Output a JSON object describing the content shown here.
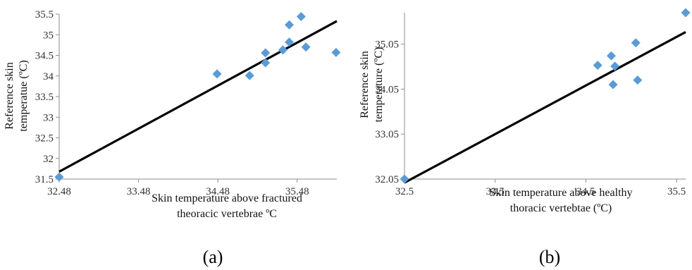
{
  "chart_data": [
    {
      "type": "scatter",
      "panel_label": "(a)",
      "xlabel_lines": [
        "Skin temperature above fractured",
        "theoracic vertebrae ºC"
      ],
      "ylabel_lines": [
        "Reference skin",
        "temperatue (ºC)"
      ],
      "xlim": [
        32.48,
        35.98
      ],
      "ylim": [
        31.5,
        35.5
      ],
      "xticks": [
        "32.48",
        "33.48",
        "34.48",
        "35.48"
      ],
      "xtick_values": [
        32.48,
        33.48,
        34.48,
        35.48
      ],
      "yticks": [
        "31.5",
        "32",
        "32.5",
        "33",
        "33.5",
        "34",
        "34.5",
        "35",
        "35.5"
      ],
      "ytick_values": [
        31.5,
        32,
        32.5,
        33,
        33.5,
        34,
        34.5,
        35,
        35.5
      ],
      "grid": false,
      "points": [
        {
          "x": 32.48,
          "y": 31.55
        },
        {
          "x": 34.47,
          "y": 34.05
        },
        {
          "x": 34.88,
          "y": 34.01
        },
        {
          "x": 35.08,
          "y": 34.56
        },
        {
          "x": 35.08,
          "y": 34.32
        },
        {
          "x": 35.3,
          "y": 34.63
        },
        {
          "x": 35.38,
          "y": 34.82
        },
        {
          "x": 35.38,
          "y": 35.24
        },
        {
          "x": 35.53,
          "y": 35.44
        },
        {
          "x": 35.59,
          "y": 34.7
        },
        {
          "x": 35.97,
          "y": 34.57
        }
      ],
      "trendline": {
        "x1": 32.48,
        "y1": 31.68,
        "x2": 35.98,
        "y2": 35.33
      },
      "marker_color": "#5b9bd5",
      "line_color": "#000000"
    },
    {
      "type": "scatter",
      "panel_label": "(b)",
      "xlabel_lines": [
        "Skin temperature above healthy",
        "thoracic vertebtae (ºC)"
      ],
      "ylabel_lines": [
        "Reference skin",
        "temperature  (ºC)"
      ],
      "xlim": [
        32.5,
        35.6
      ],
      "ylim": [
        32.05,
        35.75
      ],
      "xticks": [
        "32.5",
        "33.5",
        "34.5",
        "35.5"
      ],
      "xtick_values": [
        32.5,
        33.5,
        34.5,
        35.5
      ],
      "yticks": [
        "32.05",
        "33.05",
        "34.05",
        "35.05"
      ],
      "ytick_values": [
        32.05,
        33.05,
        34.05,
        35.05
      ],
      "grid": false,
      "points": [
        {
          "x": 32.5,
          "y": 32.05
        },
        {
          "x": 34.63,
          "y": 34.58
        },
        {
          "x": 34.78,
          "y": 34.79
        },
        {
          "x": 34.82,
          "y": 34.56
        },
        {
          "x": 34.8,
          "y": 34.15
        },
        {
          "x": 35.05,
          "y": 35.08
        },
        {
          "x": 35.07,
          "y": 34.25
        },
        {
          "x": 35.6,
          "y": 35.75
        }
      ],
      "trendline": {
        "x1": 32.5,
        "y1": 31.97,
        "x2": 35.6,
        "y2": 35.32
      },
      "marker_color": "#5b9bd5",
      "line_color": "#000000"
    }
  ]
}
